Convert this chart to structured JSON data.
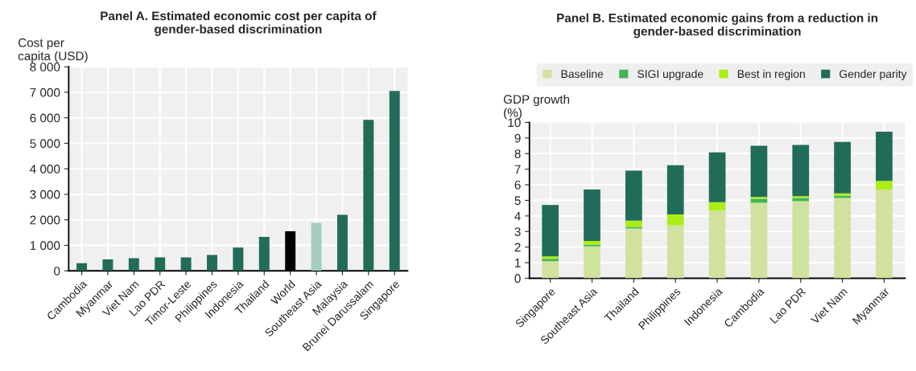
{
  "chart_data": [
    {
      "type": "bar",
      "title": "Panel A. Estimated economic cost per capita of\ngender-based discrimination",
      "ylabel": "Cost per\ncapita (USD)",
      "categories": [
        "Cambodia",
        "Myanmar",
        "Viet Nam",
        "Lao PDR",
        "Timor-Leste",
        "Philippines",
        "Indonesia",
        "Thailand",
        "World",
        "Southeast Asia",
        "Malaysia",
        "Brunei Darussalam",
        "Singapore"
      ],
      "values": [
        300,
        450,
        500,
        530,
        530,
        620,
        910,
        1330,
        1550,
        1880,
        2200,
        5920,
        7050
      ],
      "colors": [
        "#216c58",
        "#216c58",
        "#216c58",
        "#216c58",
        "#216c58",
        "#216c58",
        "#216c58",
        "#216c58",
        "#000000",
        "#a6cdbf",
        "#216c58",
        "#216c58",
        "#216c58"
      ],
      "ylim": [
        0,
        8000
      ],
      "yticks": [
        0,
        {
          "value": 1000,
          "label": "1 000"
        },
        {
          "value": 2000,
          "label": "2 000"
        },
        {
          "value": 3000,
          "label": "3 000"
        },
        {
          "value": 4000,
          "label": "4 000"
        },
        {
          "value": 5000,
          "label": "5 000"
        },
        {
          "value": 6000,
          "label": "6 000"
        },
        {
          "value": 7000,
          "label": "7 000"
        },
        {
          "value": 8000,
          "label": "8 000"
        }
      ],
      "grid": true
    },
    {
      "type": "bar",
      "stacked": true,
      "title": "Panel B. Estimated economic gains from a reduction in\ngender-based discrimination",
      "ylabel": "GDP growth\n(%)",
      "categories": [
        "Singapore",
        "Southeast Asia",
        "Thailand",
        "Philippines",
        "Indonesia",
        "Cambodia",
        "Lao PDR",
        "Viet Nam",
        "Myanmar"
      ],
      "series": [
        {
          "name": "Baseline",
          "color": "#d1e29f",
          "values": [
            1.1,
            2.05,
            3.2,
            3.4,
            4.35,
            4.85,
            4.95,
            5.15,
            5.7
          ]
        },
        {
          "name": "SIGI upgrade",
          "color": "#44b556",
          "values": [
            0.15,
            0.1,
            0.1,
            null,
            null,
            0.25,
            0.2,
            0.15,
            0.0
          ]
        },
        {
          "name": "Best in region",
          "color": "#a9ee14",
          "values": [
            0.15,
            0.25,
            0.4,
            0.7,
            0.53,
            0.12,
            0.12,
            0.15,
            0.55
          ]
        },
        {
          "name": "Gender parity",
          "color": "#216c58",
          "values": [
            3.3,
            3.3,
            3.2,
            3.15,
            3.2,
            3.28,
            3.28,
            3.3,
            3.15
          ]
        }
      ],
      "ylim": [
        0,
        10
      ],
      "yticks": [
        0,
        1,
        2,
        3,
        4,
        5,
        6,
        7,
        8,
        9,
        10
      ],
      "grid": true,
      "legend": "top"
    }
  ]
}
